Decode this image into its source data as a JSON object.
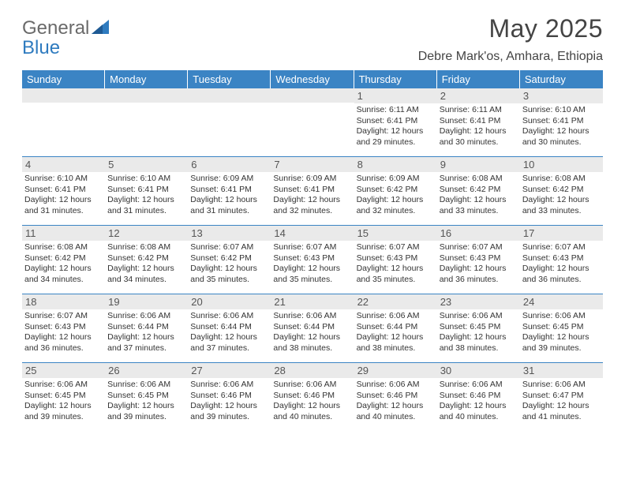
{
  "brand": {
    "part1": "General",
    "part2": "Blue"
  },
  "title": "May 2025",
  "location": "Debre Mark'os, Amhara, Ethiopia",
  "colors": {
    "header_blue": "#3b84c4",
    "band_gray": "#eaeaea",
    "text": "#333333",
    "logo_gray": "#6a6a6a",
    "logo_blue": "#2f7bbf",
    "white": "#ffffff"
  },
  "weekdays": [
    "Sunday",
    "Monday",
    "Tuesday",
    "Wednesday",
    "Thursday",
    "Friday",
    "Saturday"
  ],
  "weeks": [
    [
      null,
      null,
      null,
      null,
      {
        "n": "1",
        "sr": "6:11 AM",
        "ss": "6:41 PM",
        "dl": "12 hours and 29 minutes."
      },
      {
        "n": "2",
        "sr": "6:11 AM",
        "ss": "6:41 PM",
        "dl": "12 hours and 30 minutes."
      },
      {
        "n": "3",
        "sr": "6:10 AM",
        "ss": "6:41 PM",
        "dl": "12 hours and 30 minutes."
      }
    ],
    [
      {
        "n": "4",
        "sr": "6:10 AM",
        "ss": "6:41 PM",
        "dl": "12 hours and 31 minutes."
      },
      {
        "n": "5",
        "sr": "6:10 AM",
        "ss": "6:41 PM",
        "dl": "12 hours and 31 minutes."
      },
      {
        "n": "6",
        "sr": "6:09 AM",
        "ss": "6:41 PM",
        "dl": "12 hours and 31 minutes."
      },
      {
        "n": "7",
        "sr": "6:09 AM",
        "ss": "6:41 PM",
        "dl": "12 hours and 32 minutes."
      },
      {
        "n": "8",
        "sr": "6:09 AM",
        "ss": "6:42 PM",
        "dl": "12 hours and 32 minutes."
      },
      {
        "n": "9",
        "sr": "6:08 AM",
        "ss": "6:42 PM",
        "dl": "12 hours and 33 minutes."
      },
      {
        "n": "10",
        "sr": "6:08 AM",
        "ss": "6:42 PM",
        "dl": "12 hours and 33 minutes."
      }
    ],
    [
      {
        "n": "11",
        "sr": "6:08 AM",
        "ss": "6:42 PM",
        "dl": "12 hours and 34 minutes."
      },
      {
        "n": "12",
        "sr": "6:08 AM",
        "ss": "6:42 PM",
        "dl": "12 hours and 34 minutes."
      },
      {
        "n": "13",
        "sr": "6:07 AM",
        "ss": "6:42 PM",
        "dl": "12 hours and 35 minutes."
      },
      {
        "n": "14",
        "sr": "6:07 AM",
        "ss": "6:43 PM",
        "dl": "12 hours and 35 minutes."
      },
      {
        "n": "15",
        "sr": "6:07 AM",
        "ss": "6:43 PM",
        "dl": "12 hours and 35 minutes."
      },
      {
        "n": "16",
        "sr": "6:07 AM",
        "ss": "6:43 PM",
        "dl": "12 hours and 36 minutes."
      },
      {
        "n": "17",
        "sr": "6:07 AM",
        "ss": "6:43 PM",
        "dl": "12 hours and 36 minutes."
      }
    ],
    [
      {
        "n": "18",
        "sr": "6:07 AM",
        "ss": "6:43 PM",
        "dl": "12 hours and 36 minutes."
      },
      {
        "n": "19",
        "sr": "6:06 AM",
        "ss": "6:44 PM",
        "dl": "12 hours and 37 minutes."
      },
      {
        "n": "20",
        "sr": "6:06 AM",
        "ss": "6:44 PM",
        "dl": "12 hours and 37 minutes."
      },
      {
        "n": "21",
        "sr": "6:06 AM",
        "ss": "6:44 PM",
        "dl": "12 hours and 38 minutes."
      },
      {
        "n": "22",
        "sr": "6:06 AM",
        "ss": "6:44 PM",
        "dl": "12 hours and 38 minutes."
      },
      {
        "n": "23",
        "sr": "6:06 AM",
        "ss": "6:45 PM",
        "dl": "12 hours and 38 minutes."
      },
      {
        "n": "24",
        "sr": "6:06 AM",
        "ss": "6:45 PM",
        "dl": "12 hours and 39 minutes."
      }
    ],
    [
      {
        "n": "25",
        "sr": "6:06 AM",
        "ss": "6:45 PM",
        "dl": "12 hours and 39 minutes."
      },
      {
        "n": "26",
        "sr": "6:06 AM",
        "ss": "6:45 PM",
        "dl": "12 hours and 39 minutes."
      },
      {
        "n": "27",
        "sr": "6:06 AM",
        "ss": "6:46 PM",
        "dl": "12 hours and 39 minutes."
      },
      {
        "n": "28",
        "sr": "6:06 AM",
        "ss": "6:46 PM",
        "dl": "12 hours and 40 minutes."
      },
      {
        "n": "29",
        "sr": "6:06 AM",
        "ss": "6:46 PM",
        "dl": "12 hours and 40 minutes."
      },
      {
        "n": "30",
        "sr": "6:06 AM",
        "ss": "6:46 PM",
        "dl": "12 hours and 40 minutes."
      },
      {
        "n": "31",
        "sr": "6:06 AM",
        "ss": "6:47 PM",
        "dl": "12 hours and 41 minutes."
      }
    ]
  ],
  "labels": {
    "sunrise": "Sunrise:",
    "sunset": "Sunset:",
    "daylight": "Daylight:"
  }
}
